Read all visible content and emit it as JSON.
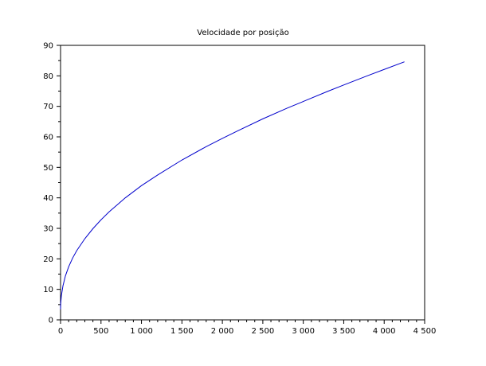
{
  "chart_data": {
    "type": "line",
    "title": "Velocidade por posição",
    "xlabel": "",
    "ylabel": "",
    "xlim": [
      0,
      4500
    ],
    "ylim": [
      0,
      90
    ],
    "x_ticks": [
      0,
      500,
      1000,
      1500,
      2000,
      2500,
      3000,
      3500,
      4000,
      4500
    ],
    "x_tick_labels": [
      "0",
      "500",
      "1 000",
      "1 500",
      "2 000",
      "2 500",
      "3 000",
      "3 500",
      "4 000",
      "4 500"
    ],
    "y_ticks": [
      0,
      10,
      20,
      30,
      40,
      50,
      60,
      70,
      80,
      90
    ],
    "y_tick_labels": [
      "0",
      "10",
      "20",
      "30",
      "40",
      "50",
      "60",
      "70",
      "80",
      "90"
    ],
    "grid": false,
    "series": [
      {
        "color": "#0000cc",
        "x": [
          0,
          2,
          10,
          30,
          60,
          100,
          150,
          200,
          300,
          400,
          500,
          600,
          800,
          1000,
          1200,
          1500,
          1800,
          2000,
          2200,
          2500,
          2800,
          3000,
          3300,
          3500,
          3800,
          4000,
          4250
        ],
        "y": [
          3.5,
          5.4,
          7.9,
          11.2,
          14.4,
          17.4,
          20.3,
          22.7,
          26.6,
          29.9,
          32.8,
          35.4,
          40.0,
          44.0,
          47.5,
          52.4,
          56.8,
          59.5,
          62.1,
          65.9,
          69.4,
          71.6,
          74.9,
          77.0,
          80.1,
          82.1,
          84.6
        ]
      }
    ]
  }
}
